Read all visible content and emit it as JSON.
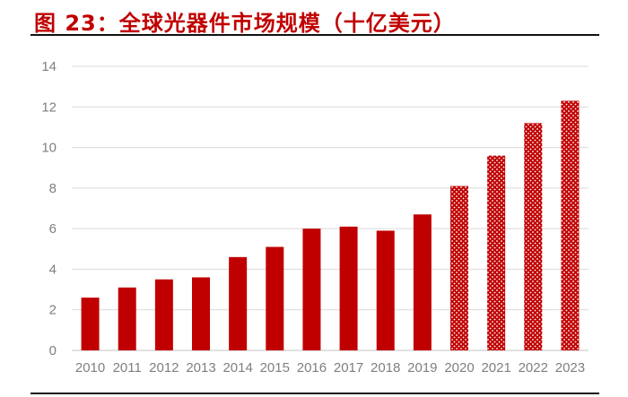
{
  "title": "图 23：全球光器件市场规模（十亿美元）",
  "chart_data": {
    "type": "bar",
    "title": "图 23：全球光器件市场规模（十亿美元）",
    "categories": [
      "2010",
      "2011",
      "2012",
      "2013",
      "2014",
      "2015",
      "2016",
      "2017",
      "2018",
      "2019",
      "2020",
      "2021",
      "2022",
      "2023"
    ],
    "series": [
      {
        "values": [
          2.6,
          3.1,
          3.5,
          3.6,
          4.6,
          5.1,
          6.0,
          6.1,
          5.9,
          6.7,
          8.1,
          9.6,
          11.2,
          12.3
        ]
      }
    ],
    "forecast_from": "2020",
    "ylim": [
      0,
      14
    ],
    "yticks": [
      0,
      2,
      4,
      6,
      8,
      10,
      12,
      14
    ],
    "grid": true,
    "legend": "none",
    "colors": {
      "bar": "#c00000",
      "forecast_dots": "#ffffff",
      "grid": "#d9d9d9",
      "title": "#c00000",
      "tick_label": "#7f7f7f"
    }
  }
}
